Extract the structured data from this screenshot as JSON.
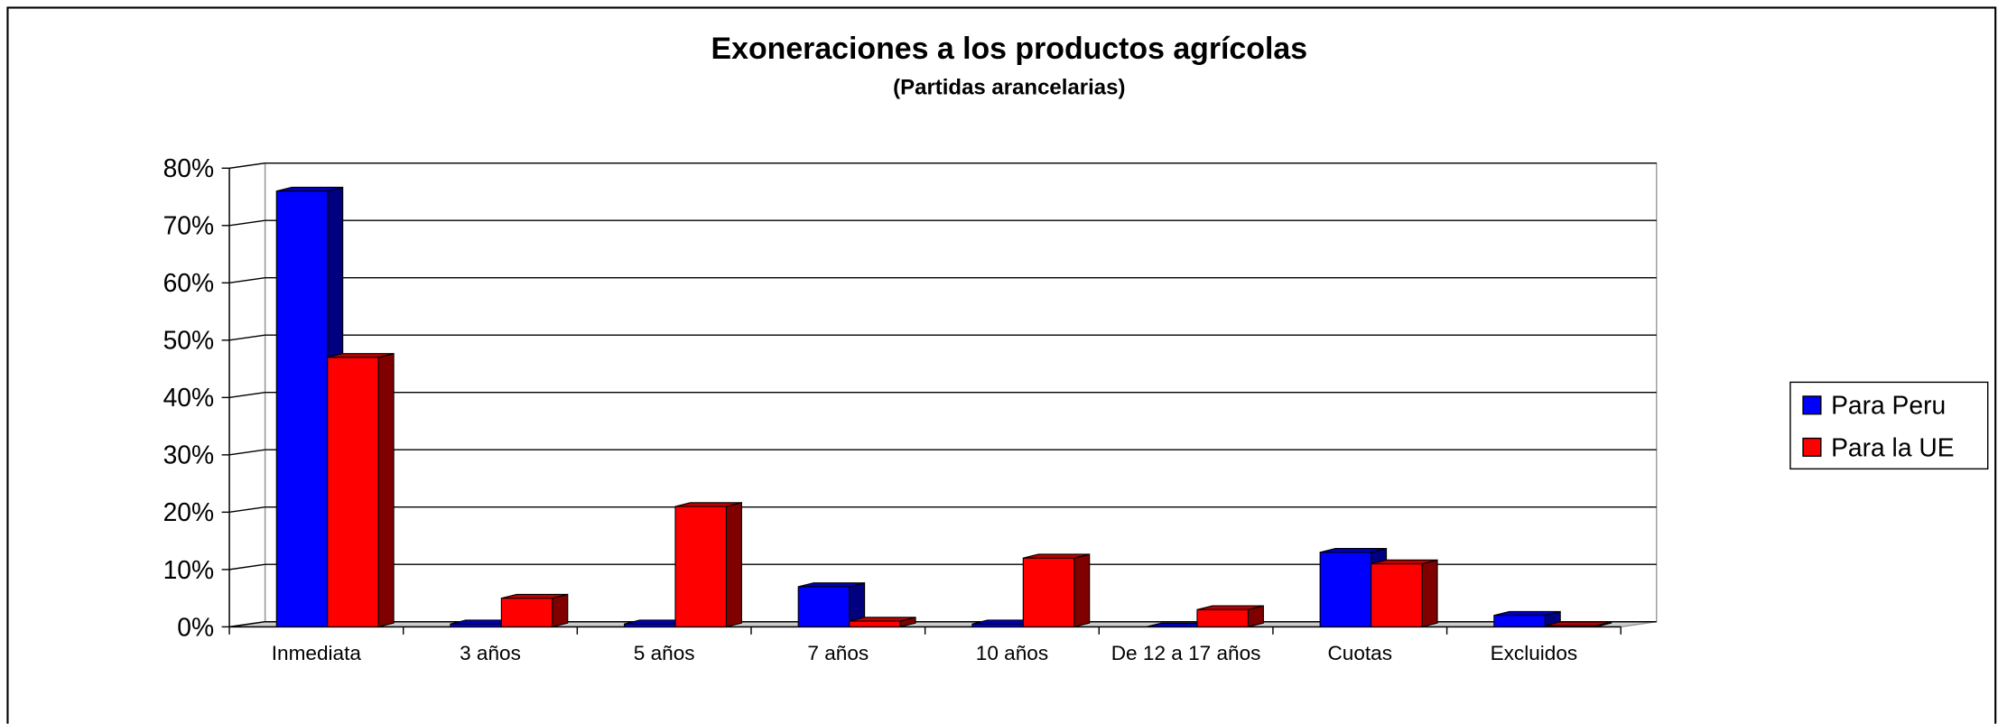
{
  "chart_data": {
    "type": "bar3d",
    "title": "Exoneraciones a los productos agrícolas",
    "subtitle": "(Partidas arancelarias)",
    "categories": [
      "Inmediata",
      "3 años",
      "5 años",
      "7 años",
      "10 años",
      "De 12 a 17 años",
      "Cuotas",
      "Excluidos"
    ],
    "series": [
      {
        "name": "Para Peru",
        "color": "#0000ff",
        "values": [
          76,
          0.5,
          0.5,
          7,
          0.5,
          0,
          13,
          2
        ]
      },
      {
        "name": "Para la UE",
        "color": "#ff0000",
        "values": [
          47,
          5,
          21,
          1,
          12,
          3,
          11,
          0.2
        ]
      }
    ],
    "ylim": [
      0,
      80
    ],
    "yticks": [
      {
        "value": 0,
        "label": "0%"
      },
      {
        "value": 10,
        "label": "10%"
      },
      {
        "value": 20,
        "label": "20%"
      },
      {
        "value": 30,
        "label": "30%"
      },
      {
        "value": 40,
        "label": "40%"
      },
      {
        "value": 50,
        "label": "50%"
      },
      {
        "value": 60,
        "label": "60%"
      },
      {
        "value": 70,
        "label": "70%"
      },
      {
        "value": 80,
        "label": "80%"
      }
    ],
    "grid": true,
    "legend": "right"
  }
}
